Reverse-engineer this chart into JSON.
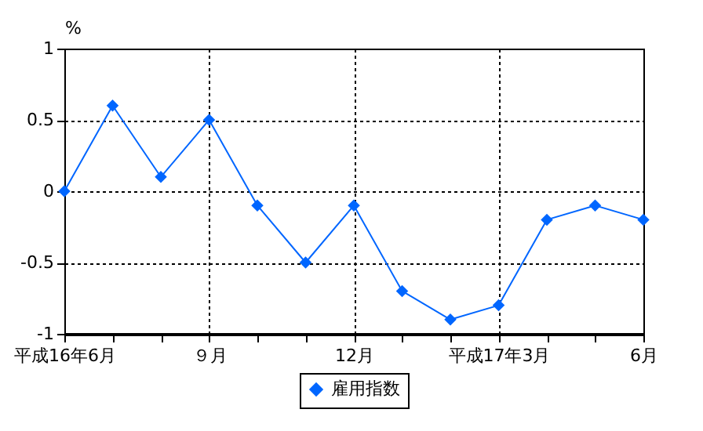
{
  "chart_data": {
    "type": "line",
    "ylabel": "%",
    "categories": [
      "平成16年6月",
      null,
      null,
      "９月",
      null,
      null,
      "12月",
      null,
      null,
      "平成17年3月",
      null,
      null,
      "6月"
    ],
    "series": [
      {
        "name": "雇用指数",
        "color": "#0066ff",
        "values": [
          0,
          0.6,
          0.1,
          0.5,
          -0.1,
          -0.5,
          -0.1,
          -0.7,
          -0.9,
          -0.8,
          -0.2,
          -0.1,
          -0.2
        ]
      }
    ],
    "ylim": [
      -1,
      1
    ],
    "yticks": [
      -1,
      -0.5,
      0,
      0.5,
      1
    ],
    "grid": true,
    "legend": "bottom",
    "marker": "diamond",
    "line_style": "solid"
  }
}
